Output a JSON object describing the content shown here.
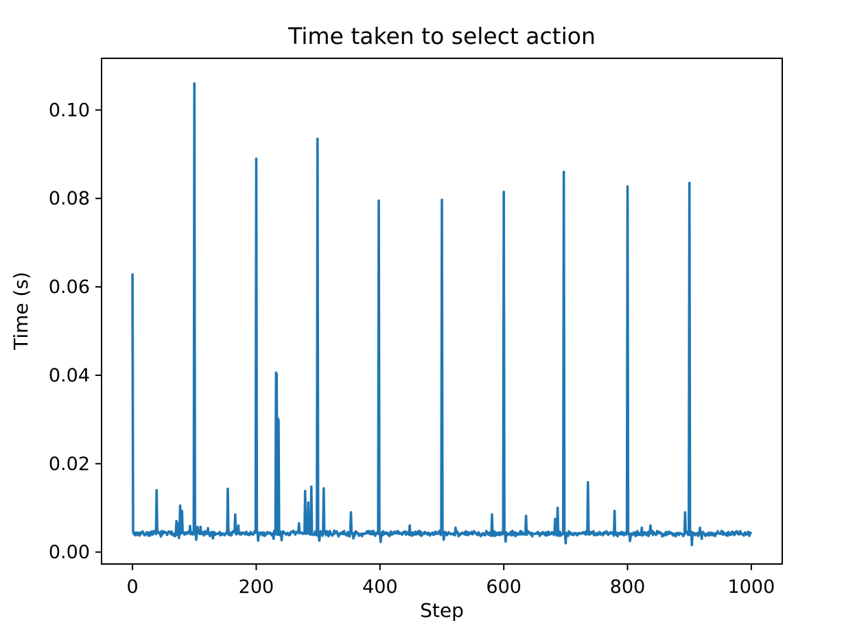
{
  "chart_data": {
    "type": "line",
    "title": "Time taken to select action",
    "xlabel": "Step",
    "ylabel": "Time (s)",
    "xlim": [
      -50,
      1050
    ],
    "ylim": [
      -0.0027,
      0.1117
    ],
    "xticks": [
      0,
      200,
      400,
      600,
      800,
      1000
    ],
    "yticks": [
      {
        "value": 0.0,
        "label": "0.00"
      },
      {
        "value": 0.02,
        "label": "0.02"
      },
      {
        "value": 0.04,
        "label": "0.04"
      },
      {
        "value": 0.06,
        "label": "0.06"
      },
      {
        "value": 0.08,
        "label": "0.08"
      },
      {
        "value": 0.1,
        "label": "0.10"
      }
    ],
    "grid": false,
    "legend": null,
    "line_color": "#1f77b4",
    "n_points": 1000,
    "baseline": 0.0042,
    "noise_amplitude": 0.0007,
    "noise_seed": 7,
    "spikes": [
      [
        0,
        0.0628
      ],
      [
        39,
        0.014
      ],
      [
        71,
        0.007
      ],
      [
        74,
        0.0065
      ],
      [
        77,
        0.0105
      ],
      [
        80,
        0.0093
      ],
      [
        93,
        0.0059
      ],
      [
        100,
        0.106
      ],
      [
        105,
        0.0057
      ],
      [
        110,
        0.0057
      ],
      [
        122,
        0.0054
      ],
      [
        154,
        0.0143
      ],
      [
        166,
        0.0085
      ],
      [
        171,
        0.006
      ],
      [
        200,
        0.089
      ],
      [
        232,
        0.0406
      ],
      [
        233,
        0.0402
      ],
      [
        235,
        0.0302
      ],
      [
        236,
        0.0298
      ],
      [
        269,
        0.0065
      ],
      [
        279,
        0.0138
      ],
      [
        284,
        0.0112
      ],
      [
        289,
        0.0148
      ],
      [
        299,
        0.0935
      ],
      [
        309,
        0.0144
      ],
      [
        353,
        0.009
      ],
      [
        398,
        0.0795
      ],
      [
        448,
        0.006
      ],
      [
        500,
        0.0797
      ],
      [
        522,
        0.0055
      ],
      [
        581,
        0.0085
      ],
      [
        600,
        0.0815
      ],
      [
        636,
        0.0082
      ],
      [
        683,
        0.0075
      ],
      [
        687,
        0.01
      ],
      [
        697,
        0.086
      ],
      [
        736,
        0.0158
      ],
      [
        779,
        0.0093
      ],
      [
        800,
        0.0827
      ],
      [
        823,
        0.0055
      ],
      [
        837,
        0.006
      ],
      [
        893,
        0.009
      ],
      [
        900,
        0.0835
      ],
      [
        917,
        0.0055
      ]
    ],
    "dips": [
      [
        75,
        0.0032
      ],
      [
        103,
        0.0028
      ],
      [
        130,
        0.0031
      ],
      [
        203,
        0.0026
      ],
      [
        228,
        0.003
      ],
      [
        241,
        0.0027
      ],
      [
        302,
        0.0026
      ],
      [
        357,
        0.0031
      ],
      [
        401,
        0.0023
      ],
      [
        503,
        0.0028
      ],
      [
        603,
        0.0024
      ],
      [
        700,
        0.002
      ],
      [
        804,
        0.0025
      ],
      [
        904,
        0.0016
      ],
      [
        920,
        0.003
      ]
    ]
  }
}
